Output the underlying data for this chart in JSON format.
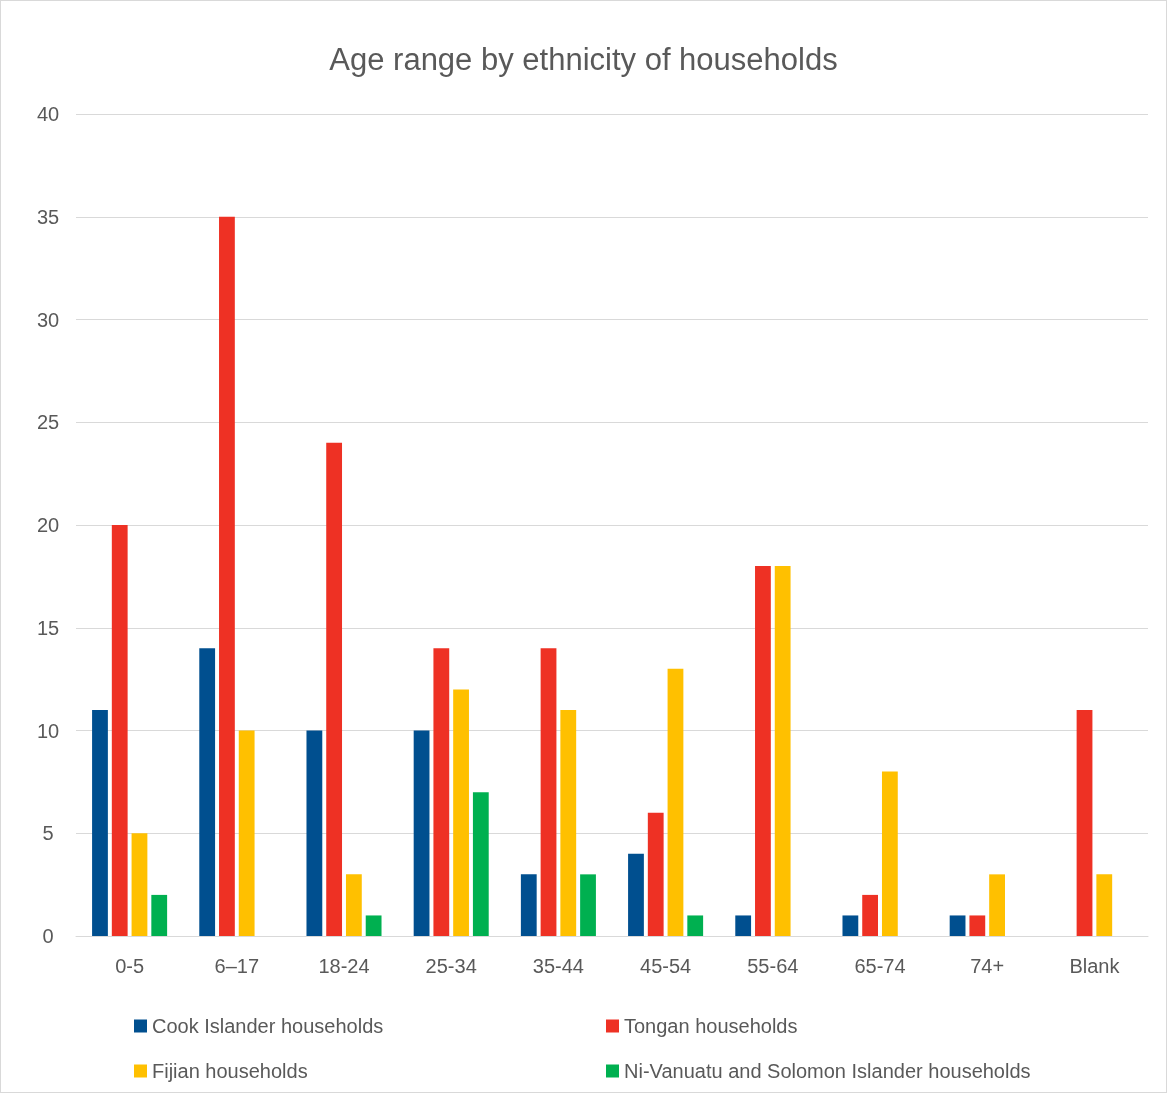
{
  "chart_data": {
    "type": "bar",
    "title": "Age range by ethnicity of households",
    "categories": [
      "0-5",
      "6–17",
      "18-24",
      "25-34",
      "35-44",
      "45-54",
      "55-64",
      "65-74",
      "74+",
      "Blank"
    ],
    "series": [
      {
        "name": "Cook Islander households",
        "color": "#004f8f",
        "values": [
          11,
          14,
          10,
          10,
          3,
          4,
          1,
          1,
          1,
          0
        ]
      },
      {
        "name": "Tongan households",
        "color": "#ee3124",
        "values": [
          20,
          35,
          24,
          14,
          14,
          6,
          18,
          2,
          1,
          11
        ]
      },
      {
        "name": "Fijian households",
        "color": "#ffc000",
        "values": [
          5,
          10,
          3,
          12,
          11,
          13,
          18,
          8,
          3,
          3
        ]
      },
      {
        "name": "Ni-Vanuatu and Solomon Islander households",
        "color": "#00b050",
        "values": [
          2,
          0,
          1,
          7,
          3,
          1,
          0,
          0,
          0,
          0
        ]
      }
    ],
    "ylim": [
      0,
      40
    ],
    "yticks": [
      0,
      5,
      10,
      15,
      20,
      25,
      30,
      35,
      40
    ],
    "grid": "y",
    "legend": "bottom"
  }
}
